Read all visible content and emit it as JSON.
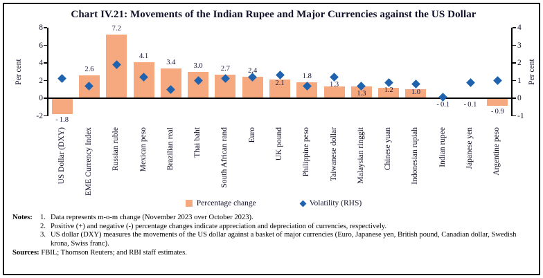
{
  "title": "Chart IV.21: Movements of the Indian Rupee and Major Currencies against the US Dollar",
  "chart_data": {
    "type": "bar",
    "categories": [
      "US Dollar (DXY)",
      "EME Currency Index",
      "Russian ruble",
      "Mexican peso",
      "Brazilian real",
      "Thai baht",
      "South African rand",
      "Euro",
      "UK pound",
      "Philippine peso",
      "Taiwanese dollar",
      "Malaysian ringgit",
      "Chinese yuan",
      "Indonesian rupiah",
      "Indian rupee",
      "Japanese yen",
      "Argentine peso"
    ],
    "series": [
      {
        "name": "Percentage change",
        "type": "bar",
        "axis": "left",
        "values": [
          -1.8,
          2.6,
          7.2,
          4.1,
          3.4,
          3.0,
          2.7,
          2.4,
          2.1,
          1.8,
          1.3,
          1.3,
          1.2,
          1.0,
          -0.1,
          -0.1,
          -0.9
        ]
      },
      {
        "name": "Volatility (RHS)",
        "type": "scatter",
        "axis": "right",
        "values": [
          1.1,
          0.7,
          1.9,
          1.2,
          0.5,
          1.0,
          1.1,
          1.2,
          1.3,
          0.7,
          1.2,
          0.7,
          0.9,
          0.8,
          0.05,
          0.9,
          1.0
        ]
      }
    ],
    "left_axis": {
      "label": "Per cent",
      "min": -2,
      "max": 8,
      "ticks": [
        8,
        6,
        4,
        2,
        0,
        -2
      ]
    },
    "right_axis": {
      "label": "Per cent",
      "min": -1,
      "max": 4,
      "ticks": [
        4,
        3,
        2,
        1,
        0,
        -1
      ]
    },
    "grid": false,
    "legend_position": "bottom",
    "bar_color": "#F6A87E",
    "marker_color": "#1F63AE"
  },
  "notes": {
    "heading": "Notes:",
    "items": [
      "Data represents m-o-m change (November 2023 over October 2023).",
      "Positive (+) and negative (-) percentage changes indicate appreciation and depreciation of currencies, respectively.",
      "US dollar (DXY) measures the movements of the US dollar against a basket of major currencies (Euro, Japanese yen, British pound, Canadian dollar, Swedish krona, Swiss franc)."
    ]
  },
  "sources": {
    "heading": "Sources:",
    "text": "FBIL; Thomson Reuters; and RBI staff estimates."
  }
}
